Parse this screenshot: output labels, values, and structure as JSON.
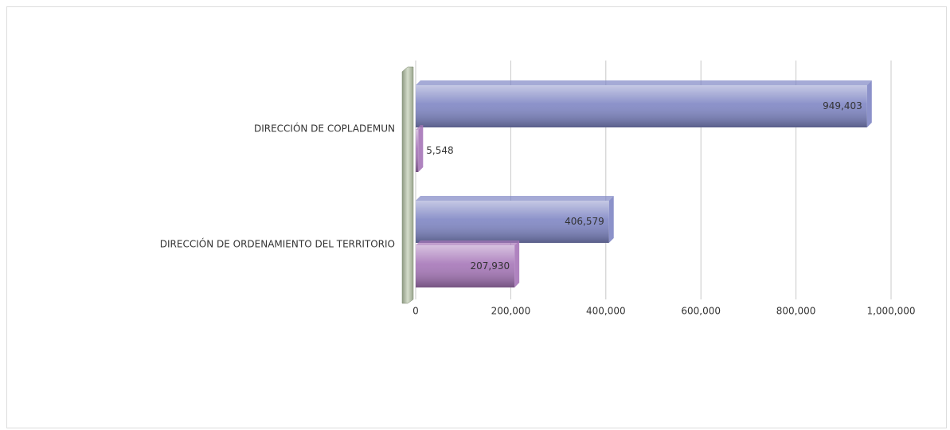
{
  "chart_data": {
    "type": "bar",
    "orientation": "horizontal",
    "categories": [
      "DIRECCIÓN DE COPLADEMUN",
      "DIRECCIÓN DE ORDENAMIENTO DEL TERRITORIO"
    ],
    "series": [
      {
        "color": "#7f86c4",
        "values": [
          949403,
          406579
        ],
        "value_labels": [
          "949,403",
          "406,579"
        ]
      },
      {
        "color": "#a676b8",
        "values": [
          5548,
          207930
        ],
        "value_labels": [
          "5,548",
          "207,930"
        ]
      }
    ],
    "xlim": [
      0,
      1000000
    ],
    "xticks": [
      0,
      {
        "value": 200000,
        "label": "200,000"
      },
      {
        "value": 400000,
        "label": "400,000"
      },
      {
        "value": 600000,
        "label": "600,000"
      },
      {
        "value": 800000,
        "label": "800,000"
      },
      {
        "value": 1000000,
        "label": "1,000,000"
      }
    ],
    "grid": true
  }
}
